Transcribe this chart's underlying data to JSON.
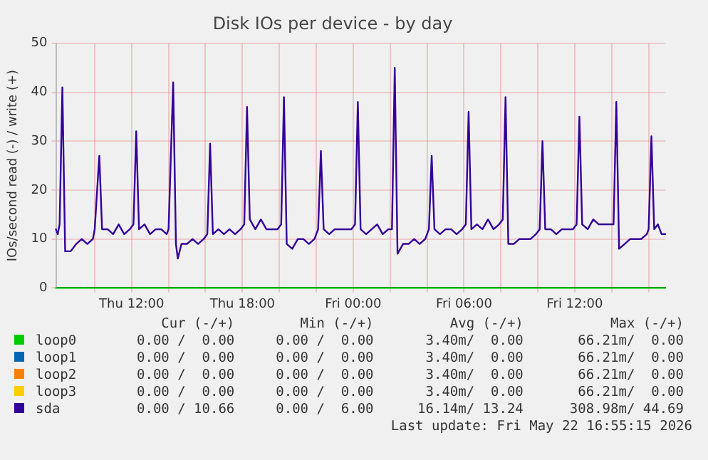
{
  "chart_data": {
    "type": "line",
    "title": "Disk IOs per device - by day",
    "ylabel": "IOs/second read (-) / write (+)",
    "xlim": [
      "2026-05-21T07:54",
      "2026-05-22T16:54"
    ],
    "ylim": [
      0,
      50
    ],
    "yticks": [
      0,
      10,
      20,
      30,
      40,
      50
    ],
    "xticks": [
      {
        "value": "2026-05-21T10:00",
        "label": null
      },
      {
        "value": "2026-05-21T12:00",
        "label": "Thu 12:00"
      },
      {
        "value": "2026-05-21T14:00",
        "label": null
      },
      {
        "value": "2026-05-21T16:00",
        "label": null
      },
      {
        "value": "2026-05-21T18:00",
        "label": "Thu 18:00"
      },
      {
        "value": "2026-05-21T20:00",
        "label": null
      },
      {
        "value": "2026-05-21T22:00",
        "label": null
      },
      {
        "value": "2026-05-22T00:00",
        "label": "Fri 00:00"
      },
      {
        "value": "2026-05-22T02:00",
        "label": null
      },
      {
        "value": "2026-05-22T04:00",
        "label": null
      },
      {
        "value": "2026-05-22T06:00",
        "label": "Fri 06:00"
      },
      {
        "value": "2026-05-22T08:00",
        "label": null
      },
      {
        "value": "2026-05-22T10:00",
        "label": null
      },
      {
        "value": "2026-05-22T12:00",
        "label": "Fri 12:00"
      },
      {
        "value": "2026-05-22T14:00",
        "label": null
      },
      {
        "value": "2026-05-22T16:00",
        "label": null
      }
    ],
    "grid": true,
    "legend": "bottom",
    "marker": "none",
    "series": [
      {
        "name": "loop0",
        "color": "#00cc00",
        "x": [
          "2026-05-21T07:54",
          "2026-05-22T16:54"
        ],
        "values": [
          0,
          0
        ]
      },
      {
        "name": "loop1",
        "color": "#0066b3"
      },
      {
        "name": "loop2",
        "color": "#ff8000"
      },
      {
        "name": "loop3",
        "color": "#ffcc00"
      },
      {
        "name": "sda",
        "color": "#330099",
        "x": [
          "2026-05-21T07:54",
          "2026-05-21T08:00",
          "2026-05-21T08:06",
          "2026-05-21T08:15",
          "2026-05-21T08:24",
          "2026-05-21T08:42",
          "2026-05-21T09:00",
          "2026-05-21T09:18",
          "2026-05-21T09:36",
          "2026-05-21T09:54",
          "2026-05-21T10:00",
          "2026-05-21T10:15",
          "2026-05-21T10:24",
          "2026-05-21T10:42",
          "2026-05-21T11:00",
          "2026-05-21T11:18",
          "2026-05-21T11:36",
          "2026-05-21T11:54",
          "2026-05-21T12:06",
          "2026-05-21T12:15",
          "2026-05-21T12:24",
          "2026-05-21T12:42",
          "2026-05-21T13:00",
          "2026-05-21T13:18",
          "2026-05-21T13:36",
          "2026-05-21T13:54",
          "2026-05-21T14:00",
          "2026-05-21T14:15",
          "2026-05-21T14:24",
          "2026-05-21T14:30",
          "2026-05-21T14:42",
          "2026-05-21T15:00",
          "2026-05-21T15:18",
          "2026-05-21T15:36",
          "2026-05-21T15:54",
          "2026-05-21T16:06",
          "2026-05-21T16:15",
          "2026-05-21T16:24",
          "2026-05-21T16:42",
          "2026-05-21T17:00",
          "2026-05-21T17:18",
          "2026-05-21T17:36",
          "2026-05-21T17:54",
          "2026-05-21T18:06",
          "2026-05-21T18:15",
          "2026-05-21T18:24",
          "2026-05-21T18:42",
          "2026-05-21T19:00",
          "2026-05-21T19:18",
          "2026-05-21T19:36",
          "2026-05-21T19:54",
          "2026-05-21T20:06",
          "2026-05-21T20:15",
          "2026-05-21T20:24",
          "2026-05-21T20:42",
          "2026-05-21T21:00",
          "2026-05-21T21:18",
          "2026-05-21T21:36",
          "2026-05-21T21:54",
          "2026-05-21T22:06",
          "2026-05-21T22:15",
          "2026-05-21T22:24",
          "2026-05-21T22:42",
          "2026-05-21T23:00",
          "2026-05-21T23:18",
          "2026-05-21T23:36",
          "2026-05-21T23:54",
          "2026-05-22T00:06",
          "2026-05-22T00:15",
          "2026-05-22T00:24",
          "2026-05-22T00:42",
          "2026-05-22T01:00",
          "2026-05-22T01:18",
          "2026-05-22T01:36",
          "2026-05-22T01:54",
          "2026-05-22T02:06",
          "2026-05-22T02:15",
          "2026-05-22T02:24",
          "2026-05-22T02:42",
          "2026-05-22T03:00",
          "2026-05-22T03:18",
          "2026-05-22T03:36",
          "2026-05-22T03:54",
          "2026-05-22T04:06",
          "2026-05-22T04:15",
          "2026-05-22T04:24",
          "2026-05-22T04:42",
          "2026-05-22T05:00",
          "2026-05-22T05:18",
          "2026-05-22T05:36",
          "2026-05-22T05:54",
          "2026-05-22T06:06",
          "2026-05-22T06:15",
          "2026-05-22T06:24",
          "2026-05-22T06:42",
          "2026-05-22T07:00",
          "2026-05-22T07:18",
          "2026-05-22T07:36",
          "2026-05-22T07:54",
          "2026-05-22T08:06",
          "2026-05-22T08:15",
          "2026-05-22T08:24",
          "2026-05-22T08:42",
          "2026-05-22T09:00",
          "2026-05-22T09:18",
          "2026-05-22T09:36",
          "2026-05-22T09:54",
          "2026-05-22T10:06",
          "2026-05-22T10:15",
          "2026-05-22T10:24",
          "2026-05-22T10:42",
          "2026-05-22T11:00",
          "2026-05-22T11:18",
          "2026-05-22T11:36",
          "2026-05-22T11:54",
          "2026-05-22T12:06",
          "2026-05-22T12:15",
          "2026-05-22T12:24",
          "2026-05-22T12:42",
          "2026-05-22T13:00",
          "2026-05-22T13:18",
          "2026-05-22T13:36",
          "2026-05-22T13:54",
          "2026-05-22T14:06",
          "2026-05-22T14:15",
          "2026-05-22T14:24",
          "2026-05-22T14:42",
          "2026-05-22T15:00",
          "2026-05-22T15:18",
          "2026-05-22T15:36",
          "2026-05-22T15:54",
          "2026-05-22T16:00",
          "2026-05-22T16:09",
          "2026-05-22T16:18",
          "2026-05-22T16:30",
          "2026-05-22T16:42",
          "2026-05-22T16:54"
        ],
        "values": [
          12,
          11,
          13,
          41,
          7.5,
          7.5,
          9,
          10,
          9,
          10,
          12,
          27,
          12,
          12,
          11,
          13,
          11,
          12,
          13,
          32,
          12,
          13,
          11,
          12,
          12,
          11,
          12,
          42,
          9,
          6,
          9,
          9,
          10,
          9,
          10,
          11,
          29.5,
          11,
          12,
          11,
          12,
          11,
          12,
          13,
          37,
          14,
          12,
          14,
          12,
          12,
          12,
          13,
          39,
          9,
          8,
          10,
          10,
          9,
          10,
          12,
          28,
          12,
          11,
          12,
          12,
          12,
          12,
          13,
          38,
          12,
          11,
          12,
          13,
          11,
          12,
          12,
          45,
          7,
          9,
          9,
          10,
          9,
          10,
          12,
          27,
          12,
          11,
          12,
          12,
          11,
          12,
          13,
          36,
          12,
          13,
          12,
          14,
          12,
          13,
          14,
          39,
          9,
          9,
          10,
          10,
          10,
          11,
          12,
          30,
          12,
          12,
          11,
          12,
          12,
          12,
          13,
          35,
          13,
          12,
          14,
          13,
          13,
          13,
          13,
          38,
          8,
          9,
          10,
          10,
          10,
          11,
          12,
          31,
          12,
          13,
          11,
          11
        ]
      }
    ],
    "annotations": [
      "Cur (-/+)",
      "Min (-/+)",
      "Avg (-/+)",
      "Max (-/+)",
      "0.00 /  0.00",
      "0.00 /  0.00",
      "3.40m/  0.00",
      "66.21m/  0.00",
      "0.00 /  0.00",
      "0.00 /  0.00",
      "3.40m/  0.00",
      "66.21m/  0.00",
      "0.00 /  0.00",
      "0.00 /  0.00",
      "3.40m/  0.00",
      "66.21m/  0.00",
      "0.00 /  0.00",
      "0.00 /  0.00",
      "3.40m/  0.00",
      "66.21m/  0.00",
      "0.00 / 10.66",
      "0.00 /  6.00",
      "16.14m/ 13.24",
      "308.98m/ 44.69",
      "Last update: Fri May 22 16:55:15 2026"
    ]
  }
}
